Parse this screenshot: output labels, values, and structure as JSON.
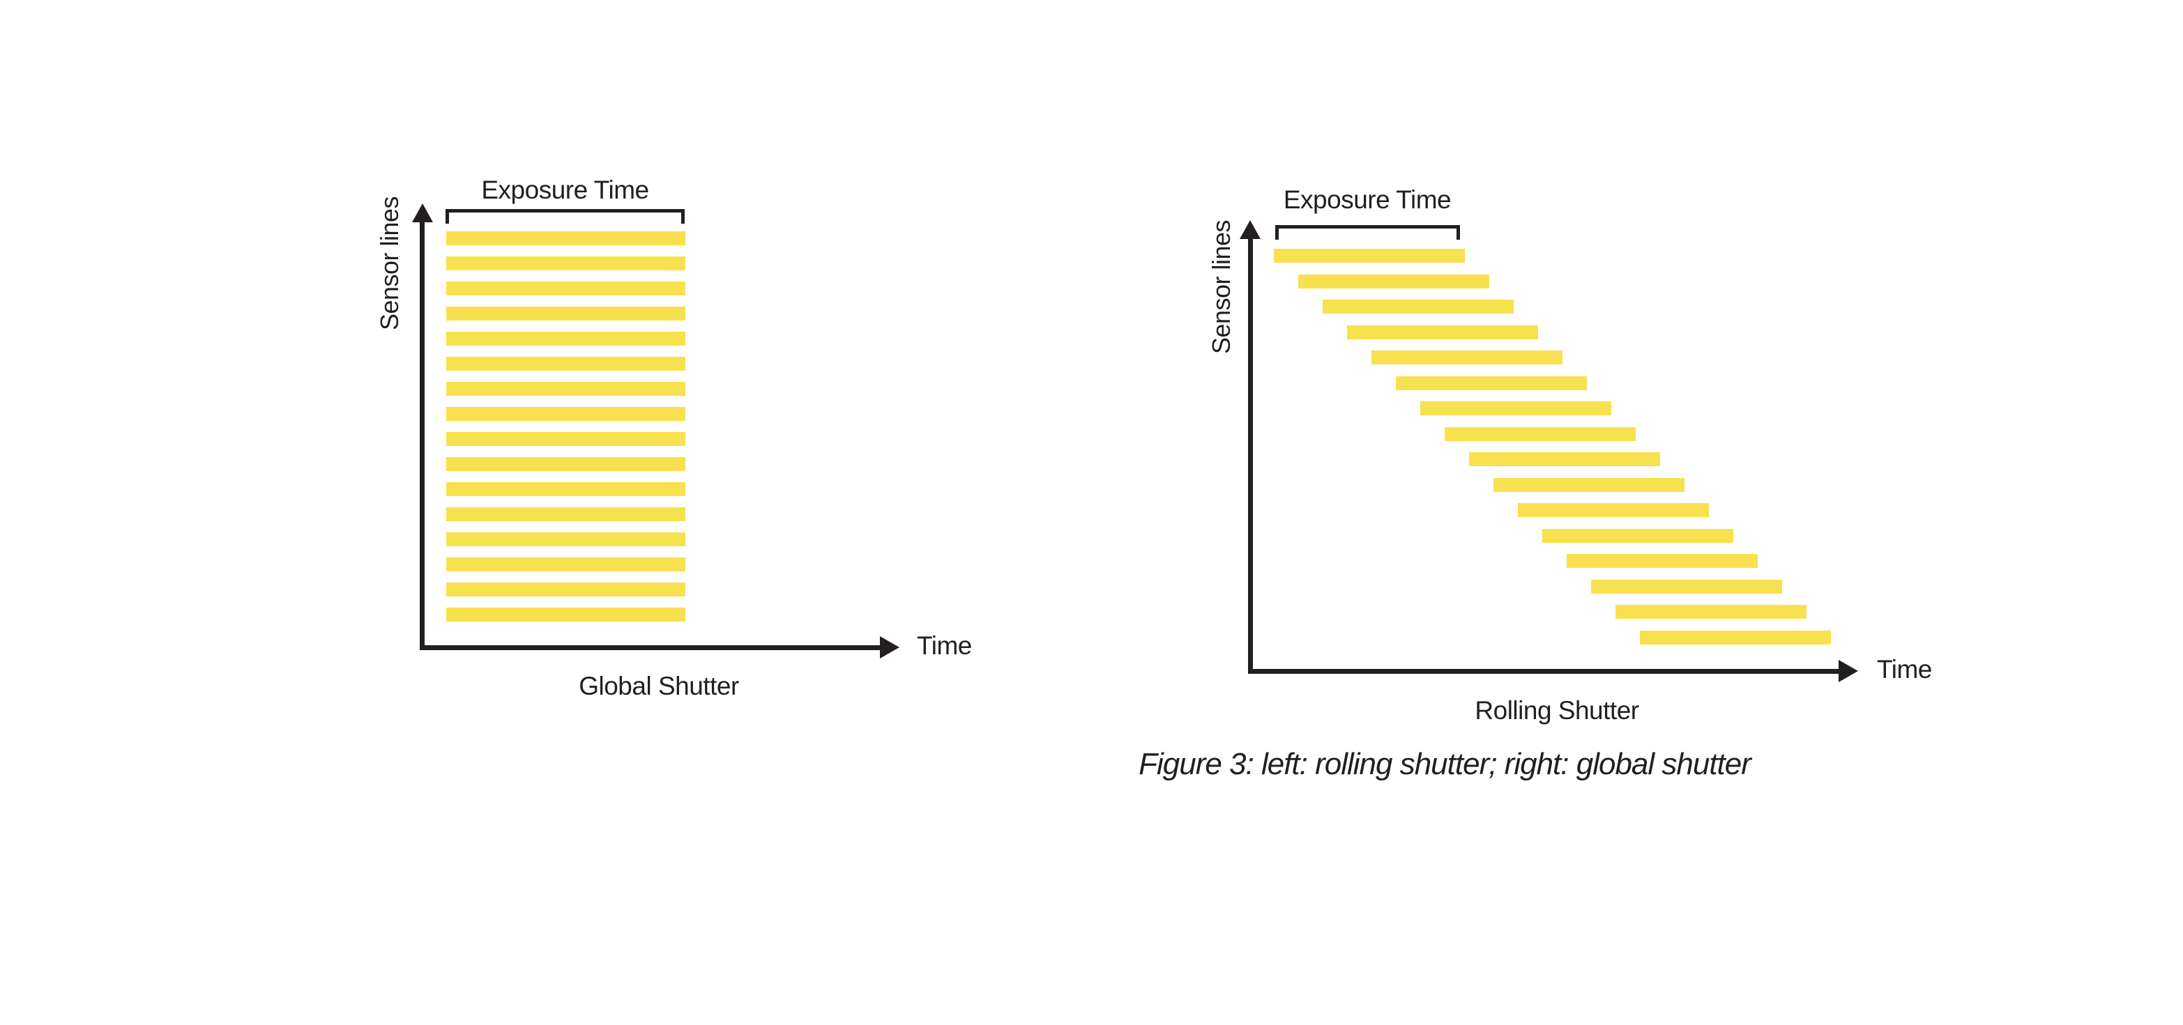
{
  "figure": {
    "caption": "Figure 3: left: rolling shutter; right: global shutter"
  },
  "colors": {
    "bar_yellow": "#F8E14F",
    "ink": "#231F20",
    "background": "#FFFFFF"
  },
  "chart_data": [
    {
      "type": "bar",
      "title": "Global Shutter",
      "xlabel": "Time",
      "ylabel": "Sensor lines",
      "annotation": "Exposure Time",
      "sensor_line_count": 16,
      "exposure_pattern": "simultaneous",
      "note": "all sensor lines share one identical exposure interval; bars vertically stacked and left-aligned under the Exposure Time bracket"
    },
    {
      "type": "bar",
      "title": "Rolling Shutter",
      "xlabel": "Time",
      "ylabel": "Sensor lines",
      "annotation": "Exposure Time",
      "sensor_line_count": 16,
      "exposure_pattern": "staggered",
      "note": "each successive sensor line starts its exposure slightly later, producing a diagonal staircase of equal-length bars"
    }
  ]
}
